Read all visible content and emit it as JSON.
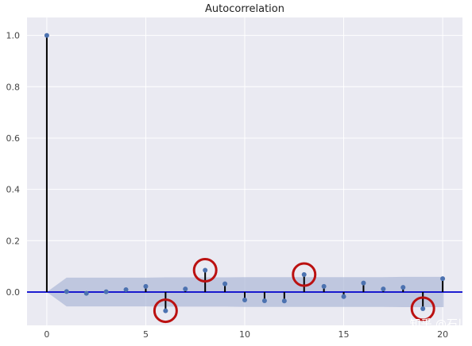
{
  "chart_data": {
    "type": "stem",
    "title": "Autocorrelation",
    "xlabel": "",
    "ylabel": "",
    "x_ticks": [
      0,
      5,
      10,
      15,
      20
    ],
    "y_ticks": [
      0.0,
      0.2,
      0.4,
      0.6,
      0.8,
      1.0
    ],
    "x_tick_labels": [
      "0",
      "5",
      "10",
      "15",
      "20"
    ],
    "y_tick_labels": [
      "0.0",
      "0.2",
      "0.4",
      "0.6",
      "0.8",
      "1.0"
    ],
    "xlim": [
      -1,
      21
    ],
    "ylim": [
      -0.13,
      1.07
    ],
    "grid": true,
    "lags": [
      0,
      1,
      2,
      3,
      4,
      5,
      6,
      7,
      8,
      9,
      10,
      11,
      12,
      13,
      14,
      15,
      16,
      17,
      18,
      19,
      20
    ],
    "values": [
      1.0,
      0.002,
      -0.005,
      0.001,
      0.009,
      0.022,
      -0.073,
      0.012,
      0.085,
      0.032,
      -0.031,
      -0.034,
      -0.035,
      0.068,
      0.022,
      -0.018,
      0.035,
      0.012,
      0.018,
      -0.065,
      0.052
    ],
    "confidence_band": {
      "upper": [
        0.0,
        0.056,
        0.056,
        0.056,
        0.056,
        0.056,
        0.057,
        0.057,
        0.057,
        0.057,
        0.058,
        0.058,
        0.058,
        0.058,
        0.058,
        0.058,
        0.058,
        0.058,
        0.059,
        0.059,
        0.059
      ],
      "lower": [
        0.0,
        -0.056,
        -0.056,
        -0.056,
        -0.056,
        -0.056,
        -0.057,
        -0.057,
        -0.057,
        -0.057,
        -0.058,
        -0.058,
        -0.058,
        -0.058,
        -0.058,
        -0.058,
        -0.058,
        -0.058,
        -0.059,
        -0.059,
        -0.059
      ]
    },
    "highlighted_lags": [
      6,
      8,
      13,
      19
    ],
    "colors": {
      "background": "#eaeaf2",
      "grid": "#ffffff",
      "stem": "#000000",
      "marker": "#4c72b0",
      "zero_line": "#0000cc",
      "band": "#a8b4d4",
      "highlight": "#bb1111"
    }
  },
  "watermark": "知乎 @石川"
}
